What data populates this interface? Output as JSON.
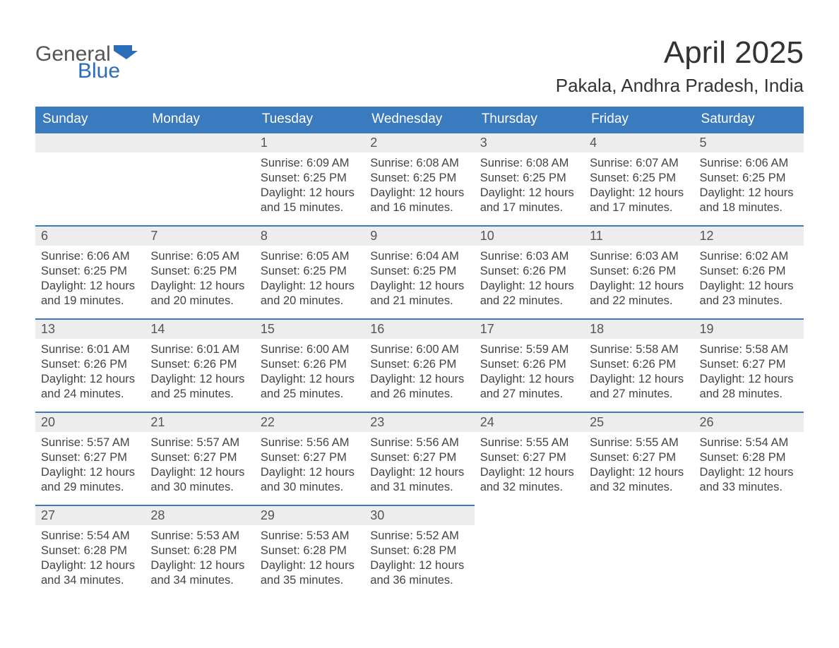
{
  "logo": {
    "word1": "General",
    "word2": "Blue"
  },
  "title": "April 2025",
  "location": "Pakala, Andhra Pradesh, India",
  "colors": {
    "header_bg": "#3a7bc0",
    "header_text": "#ffffff",
    "daynum_bg": "#ededed",
    "daynum_border": "#3a7bc0",
    "body_text": "#444444",
    "logo_gray": "#555555",
    "logo_blue": "#2a6db8",
    "background": "#ffffff"
  },
  "days_of_week": [
    "Sunday",
    "Monday",
    "Tuesday",
    "Wednesday",
    "Thursday",
    "Friday",
    "Saturday"
  ],
  "labels": {
    "sunrise": "Sunrise:",
    "sunset": "Sunset:",
    "daylight": "Daylight:"
  },
  "weeks": [
    [
      {
        "blank": true
      },
      {
        "blank": true
      },
      {
        "n": "1",
        "sunrise": "6:09 AM",
        "sunset": "6:25 PM",
        "dl1": "12 hours",
        "dl2": "and 15 minutes."
      },
      {
        "n": "2",
        "sunrise": "6:08 AM",
        "sunset": "6:25 PM",
        "dl1": "12 hours",
        "dl2": "and 16 minutes."
      },
      {
        "n": "3",
        "sunrise": "6:08 AM",
        "sunset": "6:25 PM",
        "dl1": "12 hours",
        "dl2": "and 17 minutes."
      },
      {
        "n": "4",
        "sunrise": "6:07 AM",
        "sunset": "6:25 PM",
        "dl1": "12 hours",
        "dl2": "and 17 minutes."
      },
      {
        "n": "5",
        "sunrise": "6:06 AM",
        "sunset": "6:25 PM",
        "dl1": "12 hours",
        "dl2": "and 18 minutes."
      }
    ],
    [
      {
        "n": "6",
        "sunrise": "6:06 AM",
        "sunset": "6:25 PM",
        "dl1": "12 hours",
        "dl2": "and 19 minutes."
      },
      {
        "n": "7",
        "sunrise": "6:05 AM",
        "sunset": "6:25 PM",
        "dl1": "12 hours",
        "dl2": "and 20 minutes."
      },
      {
        "n": "8",
        "sunrise": "6:05 AM",
        "sunset": "6:25 PM",
        "dl1": "12 hours",
        "dl2": "and 20 minutes."
      },
      {
        "n": "9",
        "sunrise": "6:04 AM",
        "sunset": "6:25 PM",
        "dl1": "12 hours",
        "dl2": "and 21 minutes."
      },
      {
        "n": "10",
        "sunrise": "6:03 AM",
        "sunset": "6:26 PM",
        "dl1": "12 hours",
        "dl2": "and 22 minutes."
      },
      {
        "n": "11",
        "sunrise": "6:03 AM",
        "sunset": "6:26 PM",
        "dl1": "12 hours",
        "dl2": "and 22 minutes."
      },
      {
        "n": "12",
        "sunrise": "6:02 AM",
        "sunset": "6:26 PM",
        "dl1": "12 hours",
        "dl2": "and 23 minutes."
      }
    ],
    [
      {
        "n": "13",
        "sunrise": "6:01 AM",
        "sunset": "6:26 PM",
        "dl1": "12 hours",
        "dl2": "and 24 minutes."
      },
      {
        "n": "14",
        "sunrise": "6:01 AM",
        "sunset": "6:26 PM",
        "dl1": "12 hours",
        "dl2": "and 25 minutes."
      },
      {
        "n": "15",
        "sunrise": "6:00 AM",
        "sunset": "6:26 PM",
        "dl1": "12 hours",
        "dl2": "and 25 minutes."
      },
      {
        "n": "16",
        "sunrise": "6:00 AM",
        "sunset": "6:26 PM",
        "dl1": "12 hours",
        "dl2": "and 26 minutes."
      },
      {
        "n": "17",
        "sunrise": "5:59 AM",
        "sunset": "6:26 PM",
        "dl1": "12 hours",
        "dl2": "and 27 minutes."
      },
      {
        "n": "18",
        "sunrise": "5:58 AM",
        "sunset": "6:26 PM",
        "dl1": "12 hours",
        "dl2": "and 27 minutes."
      },
      {
        "n": "19",
        "sunrise": "5:58 AM",
        "sunset": "6:27 PM",
        "dl1": "12 hours",
        "dl2": "and 28 minutes."
      }
    ],
    [
      {
        "n": "20",
        "sunrise": "5:57 AM",
        "sunset": "6:27 PM",
        "dl1": "12 hours",
        "dl2": "and 29 minutes."
      },
      {
        "n": "21",
        "sunrise": "5:57 AM",
        "sunset": "6:27 PM",
        "dl1": "12 hours",
        "dl2": "and 30 minutes."
      },
      {
        "n": "22",
        "sunrise": "5:56 AM",
        "sunset": "6:27 PM",
        "dl1": "12 hours",
        "dl2": "and 30 minutes."
      },
      {
        "n": "23",
        "sunrise": "5:56 AM",
        "sunset": "6:27 PM",
        "dl1": "12 hours",
        "dl2": "and 31 minutes."
      },
      {
        "n": "24",
        "sunrise": "5:55 AM",
        "sunset": "6:27 PM",
        "dl1": "12 hours",
        "dl2": "and 32 minutes."
      },
      {
        "n": "25",
        "sunrise": "5:55 AM",
        "sunset": "6:27 PM",
        "dl1": "12 hours",
        "dl2": "and 32 minutes."
      },
      {
        "n": "26",
        "sunrise": "5:54 AM",
        "sunset": "6:28 PM",
        "dl1": "12 hours",
        "dl2": "and 33 minutes."
      }
    ],
    [
      {
        "n": "27",
        "sunrise": "5:54 AM",
        "sunset": "6:28 PM",
        "dl1": "12 hours",
        "dl2": "and 34 minutes."
      },
      {
        "n": "28",
        "sunrise": "5:53 AM",
        "sunset": "6:28 PM",
        "dl1": "12 hours",
        "dl2": "and 34 minutes."
      },
      {
        "n": "29",
        "sunrise": "5:53 AM",
        "sunset": "6:28 PM",
        "dl1": "12 hours",
        "dl2": "and 35 minutes."
      },
      {
        "n": "30",
        "sunrise": "5:52 AM",
        "sunset": "6:28 PM",
        "dl1": "12 hours",
        "dl2": "and 36 minutes."
      },
      {
        "blank": true,
        "nobar": true
      },
      {
        "blank": true,
        "nobar": true
      },
      {
        "blank": true,
        "nobar": true
      }
    ]
  ]
}
